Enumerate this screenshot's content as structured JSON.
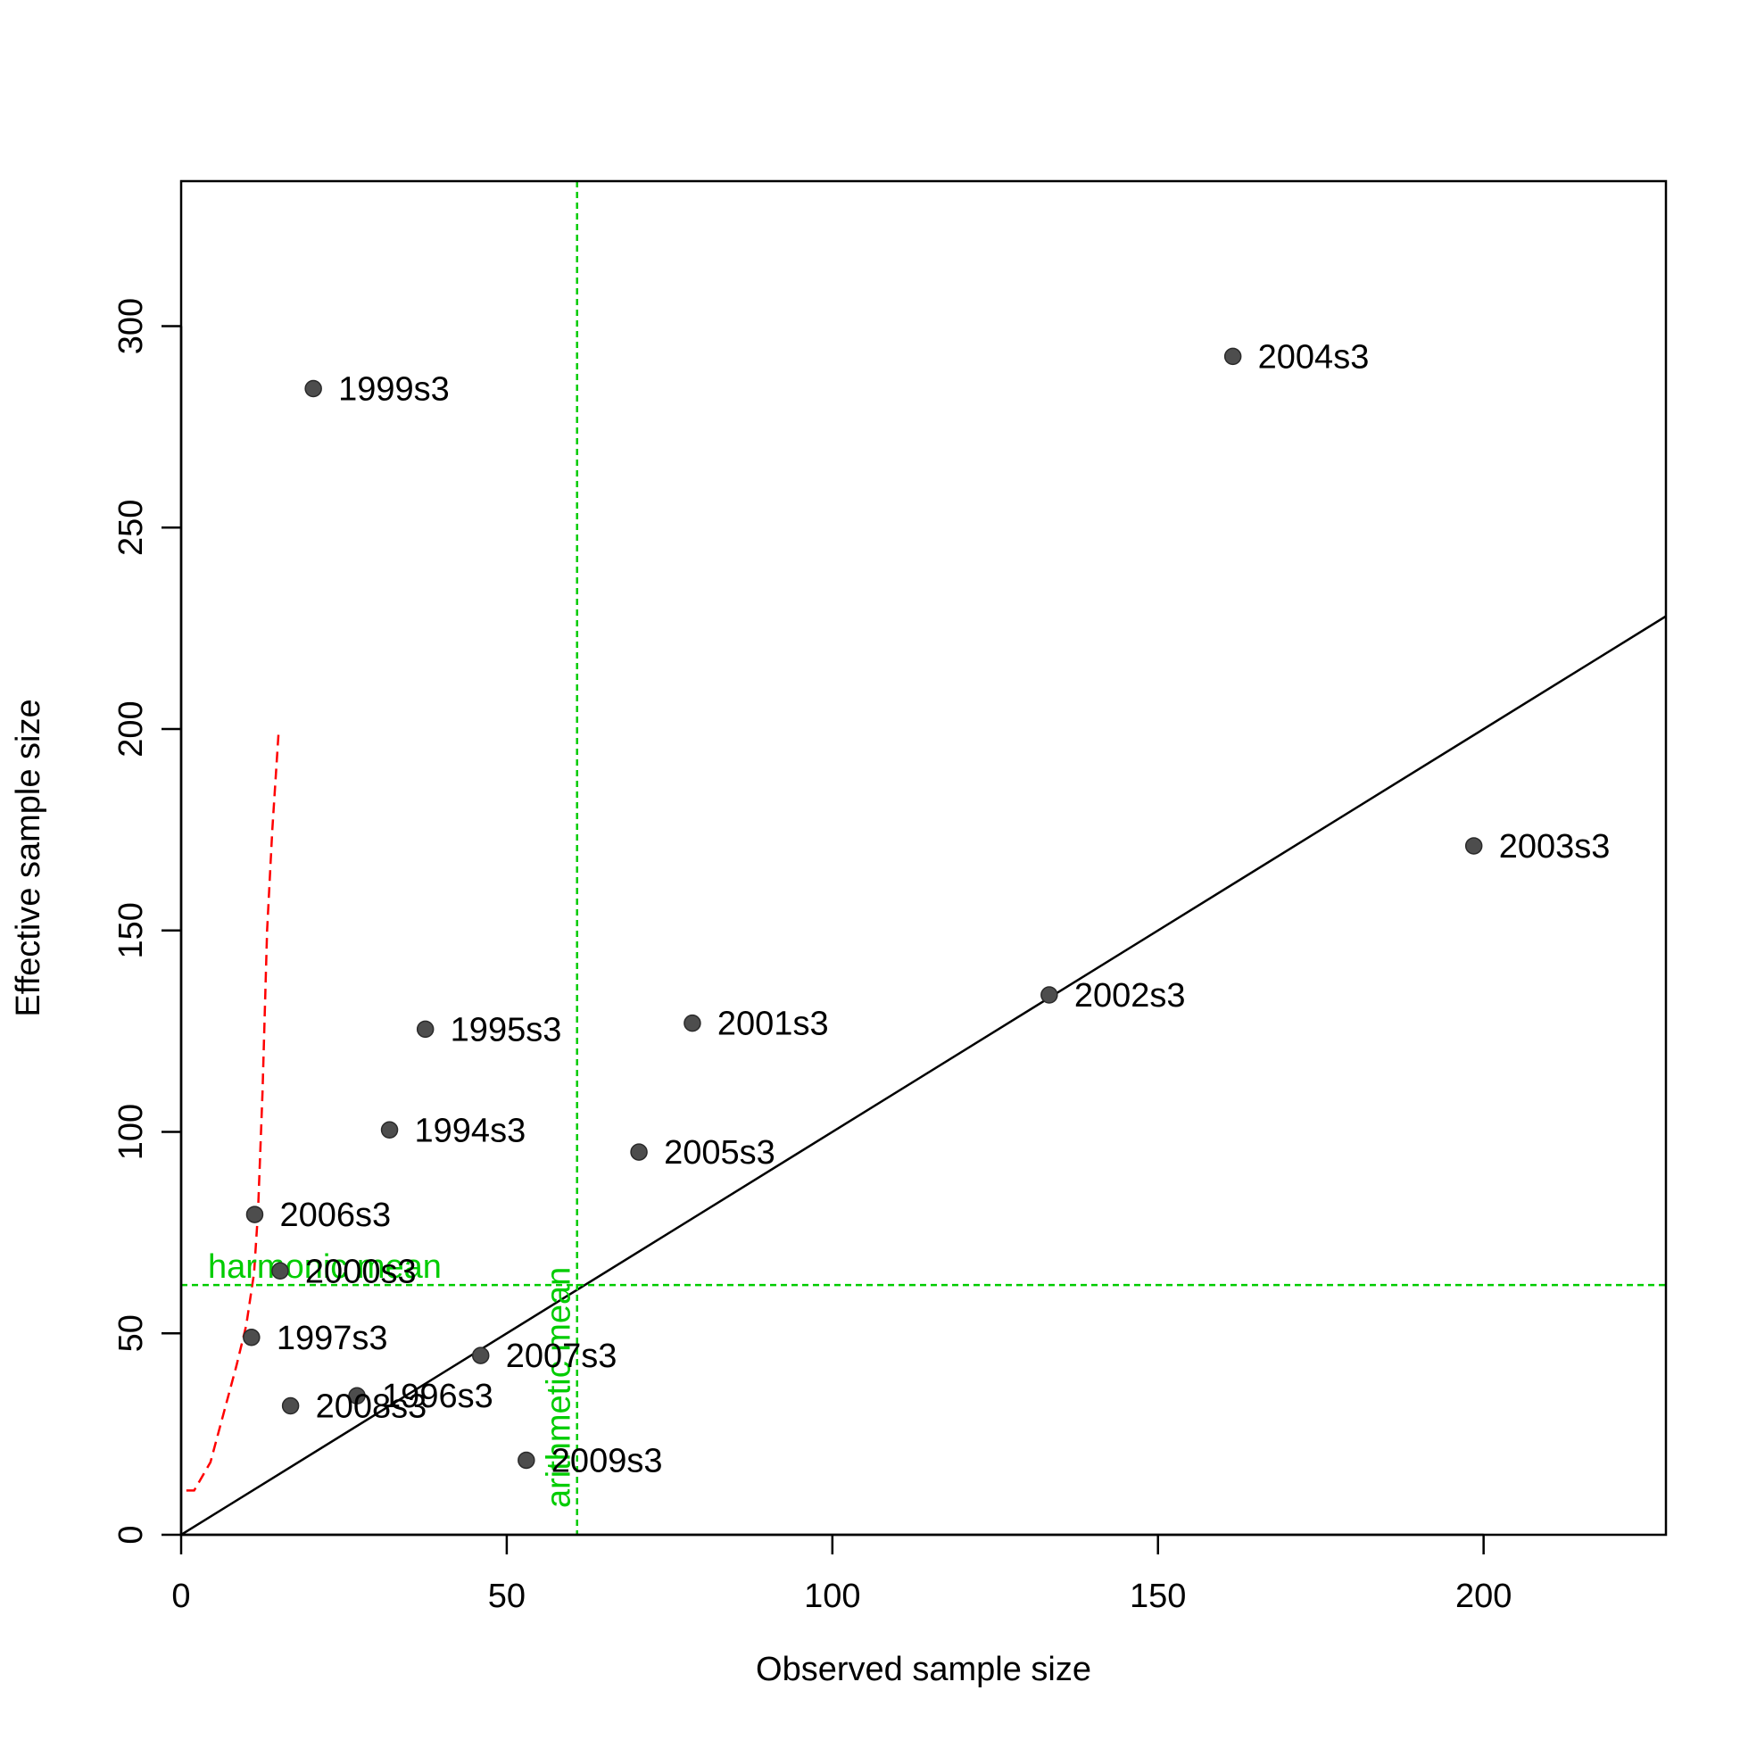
{
  "chart_data": {
    "type": "scatter",
    "xlabel": "Observed sample size",
    "ylabel": "Effective sample size",
    "xlim": [
      0,
      228
    ],
    "ylim": [
      0,
      336
    ],
    "x_ticks": [
      0,
      50,
      100,
      150,
      200
    ],
    "y_ticks": [
      0,
      50,
      100,
      150,
      200,
      250,
      300
    ],
    "grid": false,
    "point_color": "#4d4d4d",
    "points": [
      {
        "label": "1994s3",
        "x": 32,
        "y": 100.5
      },
      {
        "label": "1995s3",
        "x": 37.5,
        "y": 125.5
      },
      {
        "label": "1996s3",
        "x": 27,
        "y": 34.5
      },
      {
        "label": "1997s3",
        "x": 10.8,
        "y": 49
      },
      {
        "label": "1999s3",
        "x": 20.3,
        "y": 284.5
      },
      {
        "label": "2000s3",
        "x": 15.2,
        "y": 65.5
      },
      {
        "label": "2001s3",
        "x": 78.5,
        "y": 127
      },
      {
        "label": "2002s3",
        "x": 133.3,
        "y": 134
      },
      {
        "label": "2003s3",
        "x": 198.5,
        "y": 171
      },
      {
        "label": "2004s3",
        "x": 161.5,
        "y": 292.5
      },
      {
        "label": "2005s3",
        "x": 70.3,
        "y": 95
      },
      {
        "label": "2006s3",
        "x": 11.3,
        "y": 79.5
      },
      {
        "label": "2007s3",
        "x": 46,
        "y": 44.5
      },
      {
        "label": "2008s3",
        "x": 16.8,
        "y": 32
      },
      {
        "label": "2009s3",
        "x": 53,
        "y": 18.5
      }
    ],
    "identity_line": {
      "color": "#000000"
    },
    "harmonic_mean": {
      "label": "harmonic mean",
      "value": 62,
      "color": "#00cc00"
    },
    "arithmetic_mean": {
      "label": "arithmetic mean",
      "value": 60.8,
      "color": "#00cc00"
    },
    "cumulative_curve": {
      "color": "#ff0000",
      "x": [
        0.8,
        2,
        4.5,
        6.5,
        8.5,
        10,
        11.2,
        11.8,
        12.5,
        13.2,
        14,
        15
      ],
      "y": [
        11,
        11,
        18,
        30,
        42,
        52,
        65,
        80,
        110,
        150,
        175,
        200
      ]
    }
  }
}
